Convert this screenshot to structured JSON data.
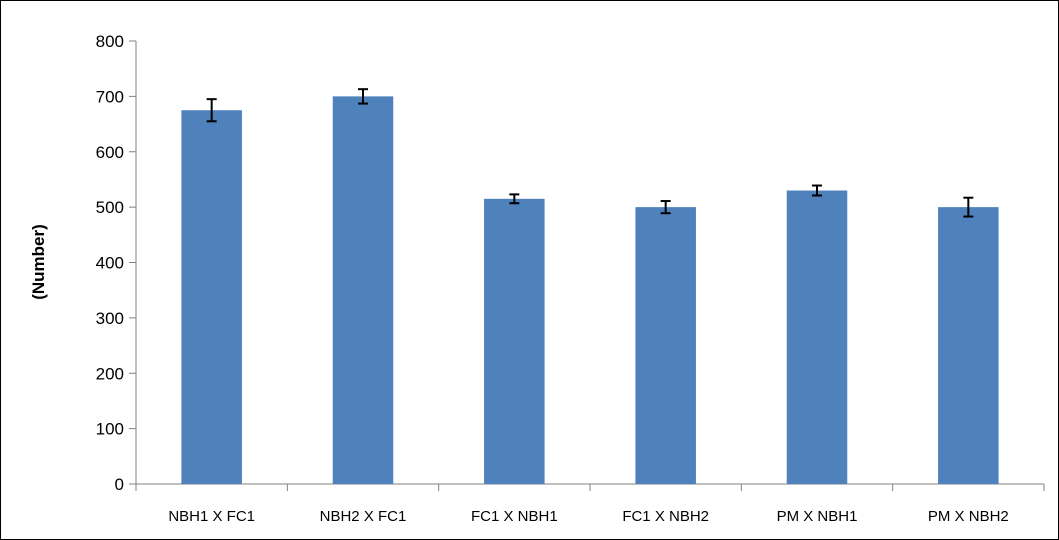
{
  "chart_data": {
    "type": "bar",
    "title": "",
    "xlabel": "",
    "ylabel": "(Number)",
    "ylim": [
      0,
      800
    ],
    "yticks": [
      0,
      100,
      200,
      300,
      400,
      500,
      600,
      700,
      800
    ],
    "grid": false,
    "legend": "none",
    "categories": [
      "NBH1 X FC1",
      "NBH2 X FC1",
      "FC1 X NBH1",
      "FC1 X NBH2",
      "PM X NBH1",
      "PM X NBH2"
    ],
    "values": [
      675,
      700,
      515,
      500,
      530,
      500
    ],
    "errors": [
      20,
      13,
      8,
      11,
      9,
      17
    ],
    "bar_color": "#4f81bd",
    "frame_color": "#000000"
  }
}
